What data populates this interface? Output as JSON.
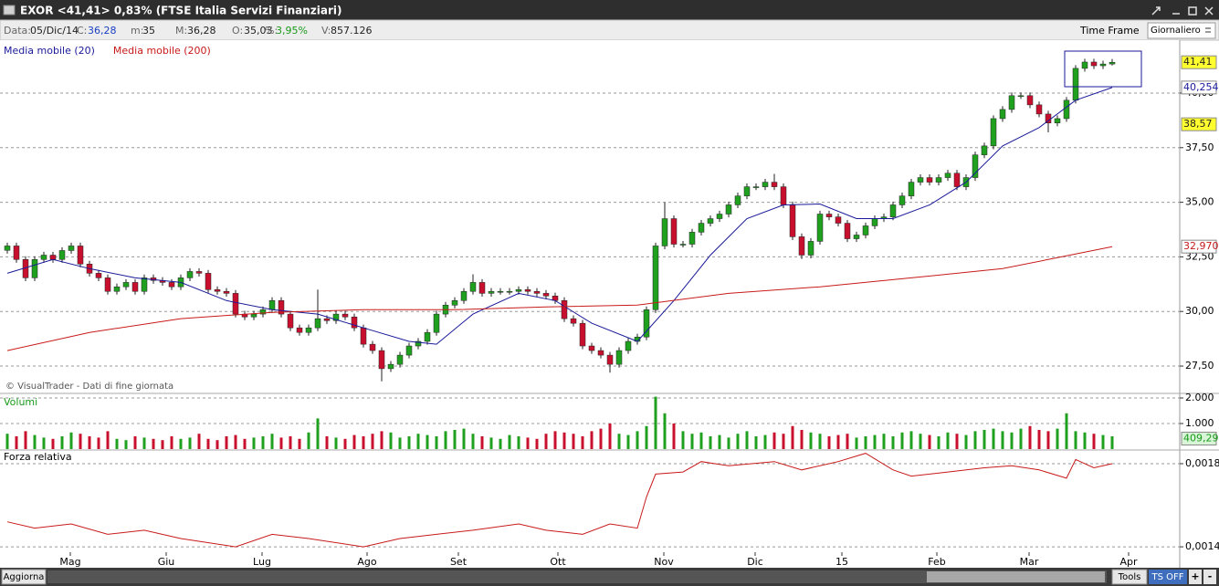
{
  "window": {
    "title": "EXOR <41,41> 0,83%  (FTSE Italia Servizi Finanziari)"
  },
  "info": [
    {
      "label": "Data:",
      "value": "05/Dic/14"
    },
    {
      "label": "C:",
      "value": "36,28",
      "color": "#1a3fc4"
    },
    {
      "label": "m:",
      "value": "35"
    },
    {
      "label": "M:",
      "value": "36,28"
    },
    {
      "label": "O:",
      "value": "35,03"
    },
    {
      "label": "%:",
      "value": "3,95%",
      "color": "#1a9a1a"
    },
    {
      "label": "V:",
      "value": "857.126"
    }
  ],
  "toolbar": {
    "time_frame": "Time Frame",
    "period": "Giornaliero"
  },
  "chart_data": [
    {
      "type": "candlestick",
      "note": "© VisualTrader - Dati di fine giornata",
      "xlim": [
        -0.8,
        128.4
      ],
      "ylim": [
        26.29,
        42.38
      ],
      "grid": true,
      "yticks": [
        {
          "value": 27.5,
          "label": "27,50"
        },
        {
          "value": 30,
          "label": "30,00"
        },
        {
          "value": 32.5,
          "label": "32,50"
        },
        {
          "value": 35,
          "label": "35,00"
        },
        {
          "value": 37.5,
          "label": "37,50"
        },
        {
          "value": 40,
          "label": "40,00"
        }
      ],
      "up_color": "#1fa01f",
      "down_color": "#c8102e",
      "open": [
        32.8,
        33.0,
        32.38,
        31.54,
        32.38,
        32.58,
        32.38,
        32.79,
        33.0,
        32.17,
        31.75,
        31.54,
        30.92,
        31.13,
        31.33,
        30.92,
        31.54,
        31.42,
        31.33,
        31.13,
        31.54,
        31.83,
        31.75,
        31.0,
        30.92,
        30.83,
        29.88,
        29.75,
        29.88,
        30.08,
        30.5,
        29.88,
        29.25,
        29.04,
        29.25,
        29.67,
        29.58,
        29.88,
        29.75,
        29.25,
        28.5,
        28.21,
        27.38,
        27.58,
        28.0,
        28.42,
        28.63,
        29.04,
        29.88,
        30.29,
        30.5,
        30.92,
        31.33,
        30.83,
        30.92,
        30.92,
        30.92,
        31.0,
        30.92,
        30.83,
        30.71,
        30.5,
        29.67,
        29.46,
        28.42,
        28.21,
        28.0,
        27.58,
        28.21,
        28.63,
        28.83,
        30.08,
        33.0,
        34.25,
        33.08,
        33.08,
        33.63,
        34.04,
        34.25,
        34.46,
        34.88,
        35.29,
        35.71,
        35.71,
        35.92,
        35.71,
        34.88,
        33.42,
        32.58,
        33.21,
        34.46,
        34.33,
        34.04,
        33.33,
        33.5,
        33.92,
        34.25,
        34.33,
        34.88,
        35.29,
        35.92,
        36.13,
        35.92,
        36.13,
        36.33,
        35.71,
        36.13,
        37.17,
        37.58,
        38.83,
        39.25,
        39.88,
        39.88,
        39.46,
        39.04,
        38.63,
        38.83,
        39.67,
        41.13,
        41.42,
        41.25,
        41.33
      ],
      "close": [
        33.0,
        32.38,
        31.54,
        32.38,
        32.58,
        32.38,
        32.79,
        33.0,
        32.17,
        31.75,
        31.54,
        30.92,
        31.13,
        31.33,
        30.92,
        31.54,
        31.42,
        31.33,
        31.13,
        31.54,
        31.83,
        31.75,
        31.0,
        30.92,
        30.83,
        29.88,
        29.75,
        29.88,
        30.08,
        30.5,
        29.88,
        29.25,
        29.04,
        29.25,
        29.67,
        29.58,
        29.88,
        29.75,
        29.25,
        28.5,
        28.21,
        27.38,
        27.58,
        28.0,
        28.42,
        28.63,
        29.04,
        29.88,
        30.29,
        30.5,
        30.92,
        31.33,
        30.83,
        30.92,
        30.92,
        30.92,
        31.0,
        30.92,
        30.83,
        30.71,
        30.5,
        29.67,
        29.46,
        28.42,
        28.21,
        28.0,
        27.58,
        28.21,
        28.63,
        28.83,
        30.08,
        33.0,
        34.25,
        33.08,
        33.08,
        33.63,
        34.04,
        34.25,
        34.46,
        34.88,
        35.29,
        35.71,
        35.71,
        35.92,
        35.71,
        34.88,
        33.42,
        32.58,
        33.21,
        34.46,
        34.33,
        34.04,
        33.33,
        33.5,
        33.92,
        34.25,
        34.33,
        34.88,
        35.29,
        35.92,
        36.13,
        35.92,
        36.13,
        36.33,
        35.71,
        36.13,
        37.17,
        37.58,
        38.83,
        39.25,
        39.88,
        39.88,
        39.46,
        39.04,
        38.63,
        38.83,
        39.67,
        41.13,
        41.42,
        41.25,
        41.33,
        41.41
      ],
      "high": [
        33.15,
        33.15,
        32.53,
        32.53,
        32.73,
        32.73,
        32.94,
        33.15,
        33.15,
        32.32,
        31.9,
        31.69,
        31.28,
        31.48,
        31.48,
        31.69,
        31.69,
        31.57,
        31.48,
        31.69,
        31.98,
        31.98,
        31.9,
        31.15,
        31.07,
        30.98,
        30.03,
        30.03,
        30.23,
        30.65,
        30.65,
        30.03,
        29.4,
        29.4,
        31.0,
        29.82,
        30.03,
        30.03,
        29.9,
        29.4,
        28.65,
        28.36,
        27.73,
        28.15,
        28.57,
        28.78,
        29.19,
        30.03,
        30.44,
        30.65,
        31.07,
        31.7,
        31.48,
        31.07,
        31.07,
        31.07,
        31.15,
        31.15,
        31.07,
        30.98,
        30.86,
        30.65,
        29.82,
        29.61,
        28.57,
        28.36,
        28.15,
        28.36,
        28.78,
        28.98,
        30.23,
        33.15,
        35.0,
        34.4,
        33.23,
        33.78,
        34.19,
        34.4,
        34.61,
        35.03,
        35.44,
        35.86,
        35.86,
        36.07,
        36.3,
        35.86,
        35.03,
        33.57,
        33.36,
        34.61,
        34.61,
        34.48,
        34.19,
        33.65,
        34.07,
        34.4,
        34.48,
        35.03,
        35.44,
        36.07,
        36.28,
        36.28,
        36.28,
        36.48,
        36.48,
        36.28,
        37.32,
        37.73,
        38.98,
        39.4,
        40.03,
        40.03,
        40.03,
        39.61,
        39.19,
        38.98,
        39.82,
        41.28,
        41.57,
        41.57,
        41.48,
        41.56
      ],
      "low": [
        32.65,
        32.23,
        31.39,
        31.39,
        32.23,
        32.23,
        32.23,
        32.64,
        32.02,
        31.6,
        31.39,
        30.77,
        30.77,
        30.98,
        30.77,
        30.77,
        31.27,
        31.18,
        30.98,
        30.98,
        31.39,
        31.6,
        30.85,
        30.77,
        30.68,
        29.73,
        29.6,
        29.6,
        29.73,
        29.93,
        29.73,
        29.1,
        28.89,
        28.89,
        29.1,
        29.43,
        29.43,
        29.6,
        29.1,
        28.35,
        28.06,
        26.8,
        27.23,
        27.43,
        27.85,
        28.27,
        28.48,
        28.89,
        29.73,
        30.14,
        30.35,
        30.77,
        30.68,
        30.68,
        30.77,
        30.77,
        30.77,
        30.77,
        30.68,
        30.56,
        30.35,
        29.52,
        29.31,
        28.27,
        28.06,
        27.85,
        27.2,
        27.43,
        28.06,
        28.48,
        28.68,
        29.93,
        32.85,
        32.93,
        32.93,
        32.93,
        33.48,
        33.89,
        34.1,
        34.31,
        34.73,
        35.14,
        35.56,
        35.56,
        35.56,
        34.73,
        33.27,
        32.4,
        32.43,
        33.06,
        34.18,
        33.89,
        33.18,
        33.18,
        33.35,
        33.77,
        34.1,
        34.18,
        34.73,
        35.14,
        35.77,
        35.77,
        35.77,
        35.98,
        35.56,
        35.56,
        35.98,
        37.02,
        37.43,
        38.68,
        39.1,
        39.73,
        39.31,
        38.89,
        38.2,
        38.48,
        38.68,
        39.52,
        40.98,
        41.1,
        41.1,
        41.26
      ],
      "series": [
        {
          "name": "Media mobile (20)",
          "color": "#1a1a9a",
          "x": [
            0,
            5,
            9,
            14,
            19,
            24,
            29,
            34,
            39,
            44,
            47,
            51,
            56,
            60,
            64,
            69,
            73,
            77,
            81,
            85,
            89,
            93,
            97,
            101,
            105,
            109,
            113,
            117,
            121
          ],
          "values": [
            31.75,
            32.38,
            31.96,
            31.54,
            31.33,
            30.5,
            30.08,
            29.88,
            29.25,
            28.63,
            28.5,
            29.88,
            30.83,
            30.5,
            29.46,
            28.63,
            30.5,
            32.58,
            34.25,
            34.88,
            34.92,
            34.25,
            34.25,
            34.88,
            35.92,
            37.58,
            38.42,
            39.67,
            40.254
          ]
        },
        {
          "name": "Media mobile (200)",
          "color": "#c81a1a",
          "x": [
            0,
            9,
            19,
            29,
            39,
            49,
            59,
            69,
            79,
            89,
            99,
            109,
            114,
            121
          ],
          "values": [
            28.21,
            29.04,
            29.67,
            29.96,
            30.08,
            30.08,
            30.21,
            30.29,
            30.83,
            31.13,
            31.54,
            31.96,
            32.38,
            32.97
          ]
        }
      ],
      "price_labels": [
        {
          "value": 41.41,
          "label": "41,41",
          "color": "#ffff30"
        },
        {
          "value": 40.254,
          "label": "40,254",
          "color": "#ffffff"
        },
        {
          "value": 38.57,
          "label": "38,57",
          "color": "#ffff30"
        },
        {
          "value": 32.97,
          "label": "32,970",
          "color": "#ffffff"
        }
      ]
    },
    {
      "type": "bar",
      "title": "Volumi",
      "xlim": [
        -0.8,
        128.4
      ],
      "ylim": [
        0,
        2143
      ],
      "grid": true,
      "yticks": [
        {
          "value": 1000,
          "label": "1.000"
        },
        {
          "value": 2000,
          "label": "2.000"
        }
      ],
      "values": [
        600,
        500,
        700,
        550,
        450,
        400,
        500,
        650,
        600,
        500,
        450,
        700,
        400,
        350,
        500,
        450,
        400,
        350,
        500,
        400,
        450,
        600,
        400,
        350,
        500,
        550,
        400,
        450,
        500,
        600,
        450,
        500,
        400,
        650,
        1200,
        500,
        450,
        400,
        550,
        500,
        600,
        700,
        650,
        450,
        500,
        600,
        550,
        500,
        700,
        750,
        800,
        600,
        500,
        450,
        400,
        550,
        500,
        450,
        400,
        600,
        700,
        650,
        600,
        500,
        700,
        800,
        1000,
        600,
        550,
        700,
        900,
        2050,
        1400,
        1000,
        700,
        600,
        650,
        500,
        550,
        450,
        600,
        700,
        500,
        550,
        650,
        600,
        900,
        750,
        650,
        600,
        500,
        550,
        600,
        450,
        500,
        550,
        600,
        500,
        650,
        700,
        600,
        550,
        500,
        650,
        600,
        550,
        700,
        750,
        800,
        700,
        650,
        800,
        900,
        750,
        700,
        800,
        1400,
        700,
        650,
        600,
        550,
        500
      ],
      "last_label": {
        "value": 409.29,
        "label": "409,29",
        "color": "#d8f5d8"
      }
    },
    {
      "type": "line",
      "title": "Forza relativa",
      "xlim": [
        -0.8,
        128.4
      ],
      "ylim": [
        0.001374,
        0.001857
      ],
      "grid": true,
      "yticks": [
        {
          "value": 0.0014,
          "label": "0,0014"
        },
        {
          "value": 0.0018,
          "label": "0,0018"
        }
      ],
      "xticks": [
        {
          "value": 6.9,
          "label": "Mag"
        },
        {
          "value": 17.4,
          "label": "Giu"
        },
        {
          "value": 27.9,
          "label": "Lug"
        },
        {
          "value": 39.4,
          "label": "Ago"
        },
        {
          "value": 49.4,
          "label": "Set"
        },
        {
          "value": 60.3,
          "label": "Ott"
        },
        {
          "value": 71.9,
          "label": "Nov"
        },
        {
          "value": 81.9,
          "label": "Dic"
        },
        {
          "value": 91.4,
          "label": "15"
        },
        {
          "value": 101.8,
          "label": "Feb"
        },
        {
          "value": 111.9,
          "label": "Mar"
        },
        {
          "value": 122.8,
          "label": "Apr"
        }
      ],
      "series": [
        {
          "color": "#c81a1a",
          "x": [
            0,
            3,
            7,
            11,
            15,
            19,
            25,
            29,
            33,
            39,
            43,
            47,
            51,
            56,
            59,
            63,
            66,
            69,
            70,
            71,
            74,
            76,
            79,
            84,
            87,
            91,
            94,
            97,
            99,
            103,
            107,
            110,
            113,
            116,
            117,
            119,
            121
          ],
          "values": [
            0.00152,
            0.00149,
            0.00151,
            0.00146,
            0.00148,
            0.00144,
            0.0014,
            0.00146,
            0.00144,
            0.0014,
            0.00144,
            0.00146,
            0.00148,
            0.00151,
            0.00148,
            0.00146,
            0.00151,
            0.00149,
            0.00164,
            0.00175,
            0.00176,
            0.00181,
            0.00179,
            0.00181,
            0.00177,
            0.00181,
            0.00185,
            0.00177,
            0.00174,
            0.00176,
            0.00178,
            0.00179,
            0.00177,
            0.00173,
            0.00182,
            0.00178,
            0.0018
          ]
        }
      ]
    }
  ],
  "footer": {
    "refresh": "Aggiorna",
    "tools": "Tools",
    "ts": "TS OFF",
    "plus": "+",
    "minus": "-"
  }
}
